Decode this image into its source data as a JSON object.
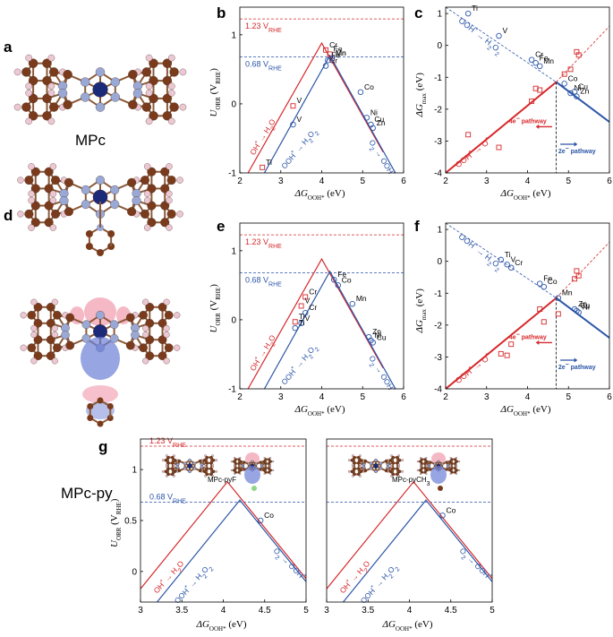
{
  "panel_letters": [
    "a",
    "b",
    "c",
    "d",
    "e",
    "f",
    "g"
  ],
  "molecule_labels": {
    "top": "MPc",
    "bottom": "MPc-py",
    "g_left": "MPc-pyF",
    "g_right": "MPc-pyCH3"
  },
  "colors": {
    "red": "#d6282b",
    "blue": "#2c56a8",
    "atom_c": "#7a3b1d",
    "atom_n": "#9aa8d6",
    "metal": "#1c2a7a",
    "h": "#ecc8d4"
  },
  "chart_data": [
    {
      "panel": "b",
      "type": "line",
      "xlabel": "ΔG_OOH* (eV)",
      "ylabel": "U_ORR (V_RHE)",
      "xlim": [
        2,
        6
      ],
      "ylim": [
        -1,
        1.4
      ],
      "xticks": [
        2,
        3,
        4,
        5,
        6
      ],
      "yticks": [
        -1,
        0,
        1
      ],
      "hlines": [
        {
          "y": 1.23,
          "label": "1.23 V_RHE",
          "color": "red"
        },
        {
          "y": 0.68,
          "label": "0.68 V_RHE",
          "color": "blue"
        }
      ],
      "series": [
        {
          "name": "OH* → H2O",
          "color": "red",
          "x": [
            2.2,
            4.0,
            5.5
          ],
          "y": [
            -1.0,
            0.88,
            -0.7
          ]
        },
        {
          "name": "OOH* → H2O2",
          "color": "blue",
          "x": [
            2.6,
            4.2,
            5.8
          ],
          "y": [
            -1.0,
            0.7,
            -1.0
          ]
        }
      ],
      "points": [
        {
          "label": "Ti",
          "x": 2.55,
          "y": -0.92,
          "color": "red"
        },
        {
          "label": "V",
          "x": 3.3,
          "y": -0.03,
          "color": "red"
        },
        {
          "label": "Cr",
          "x": 4.1,
          "y": 0.78,
          "color": "red"
        },
        {
          "label": "Fe",
          "x": 4.2,
          "y": 0.72,
          "color": "red"
        },
        {
          "label": "Mn",
          "x": 4.25,
          "y": 0.66,
          "color": "red"
        },
        {
          "label": "Cr",
          "x": 4.1,
          "y": 0.55,
          "color": "blue"
        },
        {
          "label": "Fe",
          "x": 4.15,
          "y": 0.63,
          "color": "blue"
        },
        {
          "label": "Mn",
          "x": 4.25,
          "y": 0.66,
          "color": "blue"
        },
        {
          "label": "V",
          "x": 3.3,
          "y": -0.3,
          "color": "blue"
        },
        {
          "label": "Co",
          "x": 4.95,
          "y": 0.17,
          "color": "blue"
        },
        {
          "label": "Ni",
          "x": 5.1,
          "y": -0.2,
          "color": "blue"
        },
        {
          "label": "Cu",
          "x": 5.2,
          "y": -0.3,
          "color": "blue"
        },
        {
          "label": "Zn",
          "x": 5.25,
          "y": -0.35,
          "color": "blue"
        }
      ],
      "annotations": [
        "OH* → H2O",
        "OOH* → H2O2",
        "O2 → OOH*"
      ]
    },
    {
      "panel": "c",
      "type": "scatter",
      "xlabel": "ΔG_OOH* (eV)",
      "ylabel": "ΔG_max (eV)",
      "xlim": [
        2,
        6
      ],
      "ylim": [
        -4,
        1.2
      ],
      "xticks": [
        2,
        3,
        4,
        5,
        6
      ],
      "yticks": [
        -4,
        -3,
        -2,
        -1,
        0,
        1
      ],
      "series": [
        {
          "name": "OOH* → O*",
          "color": "red",
          "x": [
            2.0,
            4.7,
            6.0
          ],
          "y": [
            -4.0,
            -1.15,
            0.6
          ]
        },
        {
          "name": "OOH* → H2O2",
          "color": "blue",
          "x": [
            2.0,
            4.7,
            6.0
          ],
          "y": [
            1.2,
            -1.15,
            -2.4
          ]
        }
      ],
      "points": [
        {
          "label": "Ti",
          "x": 2.55,
          "y": 1.0,
          "color": "blue"
        },
        {
          "label": "V",
          "x": 3.3,
          "y": 0.3,
          "color": "blue"
        },
        {
          "label": "Cr",
          "x": 4.1,
          "y": -0.45,
          "color": "blue"
        },
        {
          "label": "Fe",
          "x": 4.2,
          "y": -0.55,
          "color": "blue"
        },
        {
          "label": "Mn",
          "x": 4.3,
          "y": -0.65,
          "color": "blue"
        },
        {
          "label": "Co",
          "x": 4.9,
          "y": -1.2,
          "color": "blue"
        },
        {
          "label": "Ni",
          "x": 5.05,
          "y": -1.5,
          "color": "blue"
        },
        {
          "label": "Cu",
          "x": 5.15,
          "y": -1.45,
          "color": "blue"
        },
        {
          "label": "Zn",
          "x": 5.2,
          "y": -1.6,
          "color": "blue"
        },
        {
          "label": "",
          "x": 2.55,
          "y": -2.8,
          "color": "red"
        },
        {
          "label": "",
          "x": 3.3,
          "y": -3.2,
          "color": "red"
        },
        {
          "label": "",
          "x": 4.1,
          "y": -1.75,
          "color": "red"
        },
        {
          "label": "",
          "x": 4.2,
          "y": -1.35,
          "color": "red"
        },
        {
          "label": "",
          "x": 4.3,
          "y": -1.4,
          "color": "red"
        },
        {
          "label": "",
          "x": 4.9,
          "y": -0.9,
          "color": "red"
        },
        {
          "label": "",
          "x": 5.05,
          "y": -0.75,
          "color": "red"
        },
        {
          "label": "",
          "x": 5.2,
          "y": -0.2,
          "color": "red"
        },
        {
          "label": "",
          "x": 5.25,
          "y": -0.3,
          "color": "red"
        }
      ],
      "vline": 4.7,
      "annotations": [
        "4e⁻ pathway",
        "2e⁻ pathway",
        "OOH* → O*",
        "OOH* → H2O2"
      ]
    },
    {
      "panel": "e",
      "type": "line",
      "xlabel": "ΔG_OOH* (eV)",
      "ylabel": "U_ORR (V_RHE)",
      "xlim": [
        2,
        6
      ],
      "ylim": [
        -1,
        1.4
      ],
      "xticks": [
        2,
        3,
        4,
        5,
        6
      ],
      "yticks": [
        -1,
        0,
        1
      ],
      "hlines": [
        {
          "y": 1.23,
          "label": "1.23 V_RHE",
          "color": "red"
        },
        {
          "y": 0.68,
          "label": "0.68 V_RHE",
          "color": "blue"
        }
      ],
      "series": [
        {
          "name": "OH* → H2O",
          "color": "red",
          "x": [
            2.2,
            4.0,
            5.5
          ],
          "y": [
            -1.0,
            0.88,
            -0.7
          ]
        },
        {
          "name": "OOH* → H2O2",
          "color": "blue",
          "x": [
            2.6,
            4.2,
            5.8
          ],
          "y": [
            -1.0,
            0.7,
            -1.0
          ]
        }
      ],
      "points": [
        {
          "label": "Cr",
          "x": 3.6,
          "y": 0.33,
          "color": "red"
        },
        {
          "label": "V",
          "x": 3.5,
          "y": 0.2,
          "color": "red"
        },
        {
          "label": "Ti",
          "x": 3.35,
          "y": -0.03,
          "color": "red"
        },
        {
          "label": "Cr",
          "x": 3.6,
          "y": 0.1,
          "color": "blue"
        },
        {
          "label": "V",
          "x": 3.5,
          "y": -0.05,
          "color": "blue"
        },
        {
          "label": "Ti",
          "x": 3.35,
          "y": -0.12,
          "color": "blue"
        },
        {
          "label": "Fe",
          "x": 4.3,
          "y": 0.58,
          "color": "blue"
        },
        {
          "label": "Co",
          "x": 4.4,
          "y": 0.5,
          "color": "blue"
        },
        {
          "label": "Mn",
          "x": 4.75,
          "y": 0.23,
          "color": "blue"
        },
        {
          "label": "Zn",
          "x": 5.15,
          "y": -0.25,
          "color": "blue"
        },
        {
          "label": "Ni",
          "x": 5.2,
          "y": -0.3,
          "color": "blue"
        },
        {
          "label": "Cu",
          "x": 5.25,
          "y": -0.33,
          "color": "blue"
        }
      ],
      "annotations": [
        "OH* → H2O",
        "OOH* → H2O2",
        "O2 → OOH*"
      ]
    },
    {
      "panel": "f",
      "type": "scatter",
      "xlabel": "ΔG_OOH* (eV)",
      "ylabel": "ΔG_max (eV)",
      "xlim": [
        2,
        6
      ],
      "ylim": [
        -4,
        1.2
      ],
      "xticks": [
        2,
        3,
        4,
        5,
        6
      ],
      "yticks": [
        -4,
        -3,
        -2,
        -1,
        0,
        1
      ],
      "series": [
        {
          "name": "OOH* → O*",
          "color": "red",
          "x": [
            2.0,
            4.7,
            6.0
          ],
          "y": [
            -4.0,
            -1.15,
            0.6
          ]
        },
        {
          "name": "OOH* → H2O2",
          "color": "blue",
          "x": [
            2.0,
            4.7,
            6.0
          ],
          "y": [
            1.2,
            -1.15,
            -2.4
          ]
        }
      ],
      "points": [
        {
          "label": "Ti",
          "x": 3.35,
          "y": 0.05,
          "color": "blue"
        },
        {
          "label": "V",
          "x": 3.5,
          "y": -0.1,
          "color": "blue"
        },
        {
          "label": "Cr",
          "x": 3.6,
          "y": -0.2,
          "color": "blue"
        },
        {
          "label": "Fe",
          "x": 4.3,
          "y": -0.7,
          "color": "blue"
        },
        {
          "label": "Co",
          "x": 4.4,
          "y": -0.8,
          "color": "blue"
        },
        {
          "label": "Mn",
          "x": 4.75,
          "y": -1.15,
          "color": "blue"
        },
        {
          "label": "Zn",
          "x": 5.15,
          "y": -1.5,
          "color": "blue"
        },
        {
          "label": "Cu",
          "x": 5.2,
          "y": -1.55,
          "color": "blue"
        },
        {
          "label": "Ni",
          "x": 5.25,
          "y": -1.6,
          "color": "blue"
        },
        {
          "label": "",
          "x": 3.35,
          "y": -2.9,
          "color": "red"
        },
        {
          "label": "",
          "x": 3.5,
          "y": -2.95,
          "color": "red"
        },
        {
          "label": "",
          "x": 3.6,
          "y": -2.6,
          "color": "red"
        },
        {
          "label": "",
          "x": 4.3,
          "y": -1.5,
          "color": "red"
        },
        {
          "label": "",
          "x": 4.4,
          "y": -1.9,
          "color": "red"
        },
        {
          "label": "",
          "x": 4.75,
          "y": -1.65,
          "color": "red"
        },
        {
          "label": "",
          "x": 5.15,
          "y": -0.55,
          "color": "red"
        },
        {
          "label": "",
          "x": 5.2,
          "y": -0.3,
          "color": "red"
        },
        {
          "label": "",
          "x": 5.25,
          "y": -0.45,
          "color": "red"
        }
      ],
      "vline": 4.7,
      "annotations": [
        "4e⁻ pathway",
        "2e⁻ pathway",
        "OOH* → O*",
        "OOH* → H2O2"
      ]
    },
    {
      "panel": "g",
      "type": "line",
      "xlabel": "ΔG_OOH* (eV)",
      "ylabel": "U_ORR (V_RHE)",
      "xlim": [
        3,
        5
      ],
      "ylim": [
        -0.3,
        1.3
      ],
      "xticks": [
        3,
        3.5,
        4,
        4.5,
        5
      ],
      "yticks": [
        0,
        0.5,
        1
      ],
      "hlines": [
        {
          "y": 1.23,
          "label": "1.23 V_RHE",
          "color": "red"
        },
        {
          "y": 0.68,
          "label": "0.68 V_RHE",
          "color": "blue"
        }
      ],
      "subplots": [
        {
          "label": "MPc-pyF",
          "red": {
            "x": [
              3.0,
              4.05,
              5.0
            ],
            "y": [
              -0.17,
              0.88,
              -0.07
            ]
          },
          "blue": {
            "x": [
              3.2,
              4.2,
              5.0
            ],
            "y": [
              -0.3,
              0.7,
              -0.1
            ]
          },
          "point": {
            "label": "Co",
            "x": 4.45,
            "y": 0.5
          }
        },
        {
          "label": "MPc-pyCH3",
          "red": {
            "x": [
              3.0,
              4.05,
              5.0
            ],
            "y": [
              -0.17,
              0.88,
              -0.07
            ]
          },
          "blue": {
            "x": [
              3.2,
              4.2,
              5.0
            ],
            "y": [
              -0.3,
              0.7,
              -0.1
            ]
          },
          "point": {
            "label": "Co",
            "x": 4.4,
            "y": 0.55
          }
        }
      ],
      "annotations": [
        "OH* → H2O",
        "OOH* → H2O2",
        "O2 → OOH*"
      ]
    }
  ]
}
